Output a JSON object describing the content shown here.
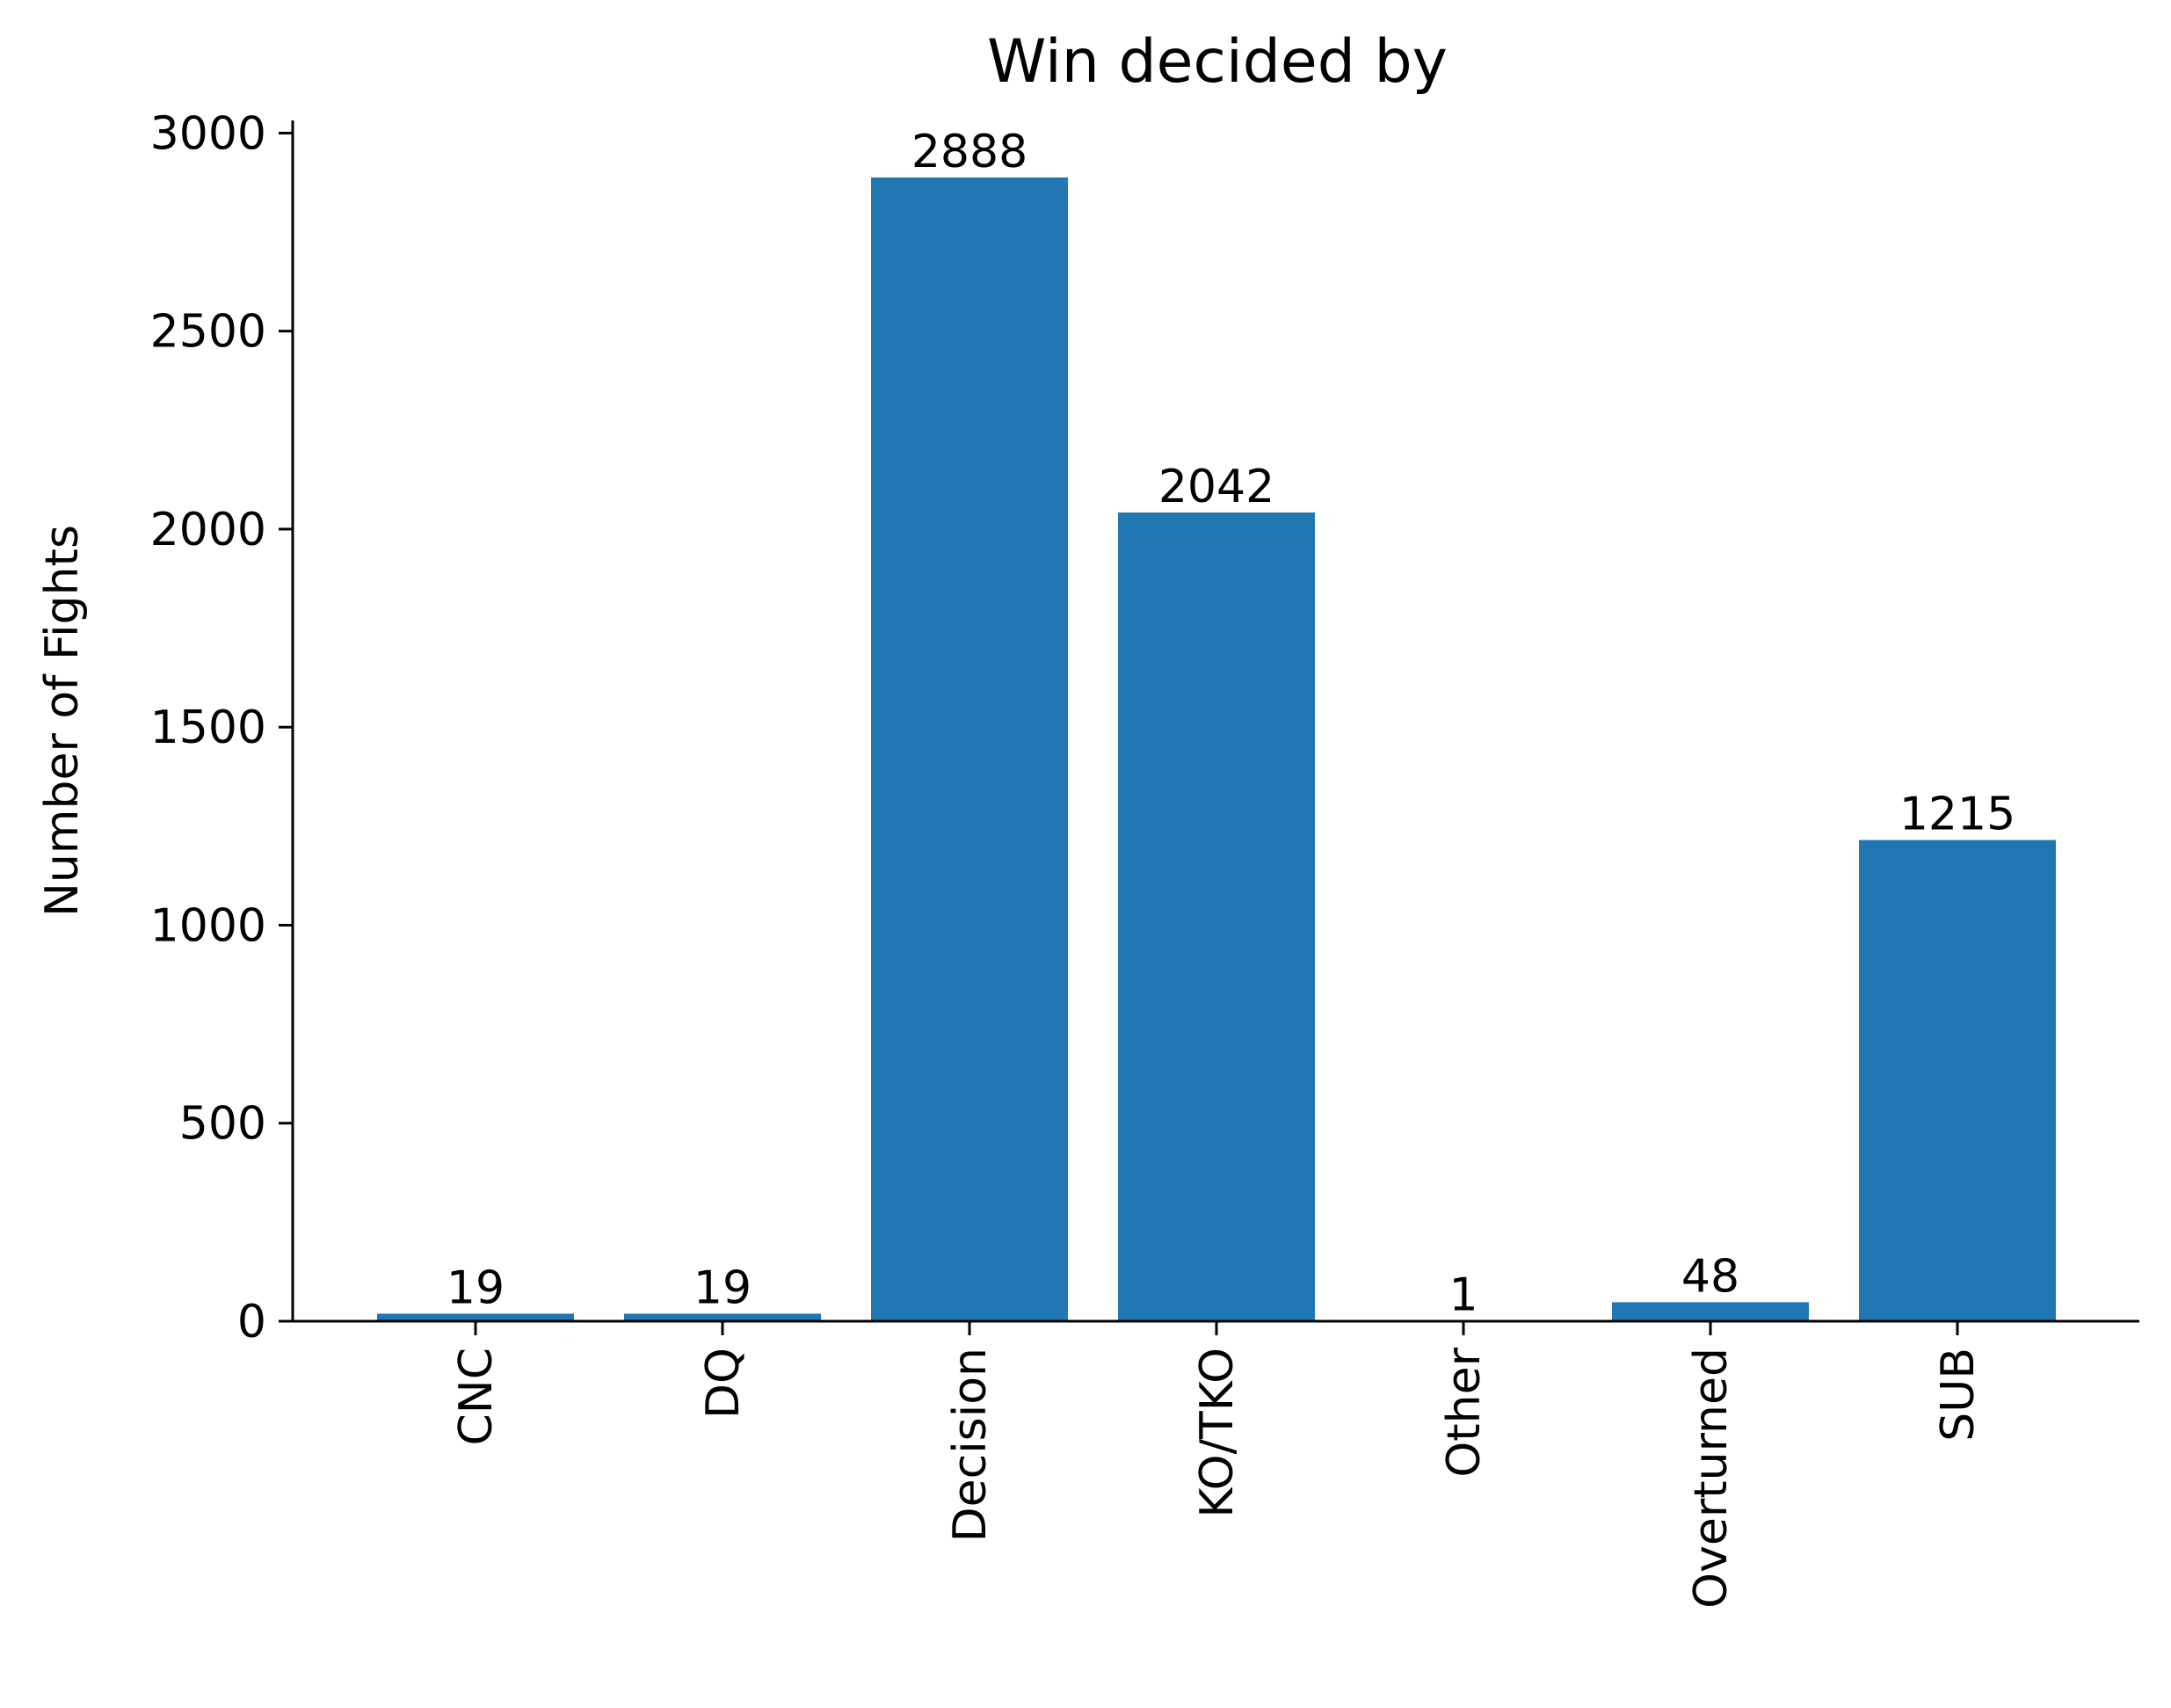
{
  "chart_data": {
    "type": "bar",
    "title": "Win decided by",
    "xlabel": "",
    "ylabel": "Number of Fights",
    "categories": [
      "CNC",
      "DQ",
      "Decision",
      "KO/TKO",
      "Other",
      "Overturned",
      "SUB"
    ],
    "values": [
      19,
      19,
      2888,
      2042,
      1,
      48,
      1215
    ],
    "value_labels": [
      "19",
      "19",
      "2888",
      "2042",
      "1",
      "48",
      "1215"
    ],
    "yticks": [
      0,
      500,
      1000,
      1500,
      2000,
      2500,
      3000
    ],
    "ytick_labels": [
      "0",
      "500",
      "1000",
      "1500",
      "2000",
      "2500",
      "3000"
    ],
    "ylim": [
      0,
      3032
    ],
    "bar_color": "#2177b2",
    "grid": false,
    "xtick_rotation": "vertical",
    "spines": "left-bottom"
  }
}
